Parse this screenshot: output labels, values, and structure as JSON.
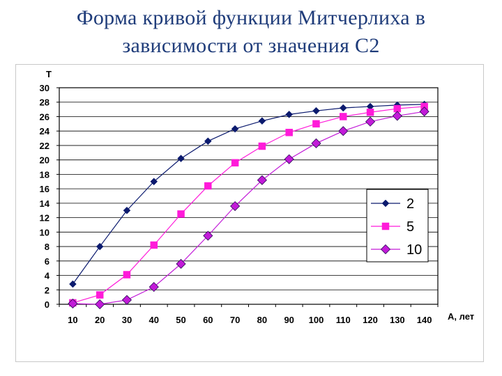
{
  "title": {
    "line1": "Форма кривой  функции Митчерлиха в",
    "line2": "зависимости от значения С2"
  },
  "chart_data": {
    "type": "line",
    "xlabel": "А, лет",
    "ylabel": "Т",
    "categories": [
      10,
      20,
      30,
      40,
      50,
      60,
      70,
      80,
      90,
      100,
      110,
      120,
      130,
      140
    ],
    "ylim": [
      0,
      30
    ],
    "yticks": [
      0,
      2,
      4,
      6,
      8,
      10,
      12,
      14,
      16,
      18,
      20,
      22,
      24,
      26,
      28,
      30
    ],
    "grid": true,
    "legend_position": "right",
    "series": [
      {
        "name": "2",
        "color": "#0b1a6e",
        "marker": "diamond-small",
        "values": [
          2.8,
          8.0,
          13.0,
          17.0,
          20.2,
          22.6,
          24.3,
          25.4,
          26.3,
          26.8,
          27.2,
          27.4,
          27.6,
          27.7
        ]
      },
      {
        "name": "5",
        "color": "#ff1ad9",
        "marker": "square",
        "values": [
          0.2,
          1.3,
          4.1,
          8.2,
          12.5,
          16.4,
          19.6,
          21.9,
          23.8,
          25.0,
          26.0,
          26.6,
          27.1,
          27.4
        ]
      },
      {
        "name": "10",
        "color": "#c21bd8",
        "marker": "diamond",
        "values": [
          0.1,
          0.0,
          0.6,
          2.4,
          5.6,
          9.5,
          13.6,
          17.2,
          20.1,
          22.3,
          24.0,
          25.3,
          26.1,
          26.7
        ]
      }
    ]
  }
}
